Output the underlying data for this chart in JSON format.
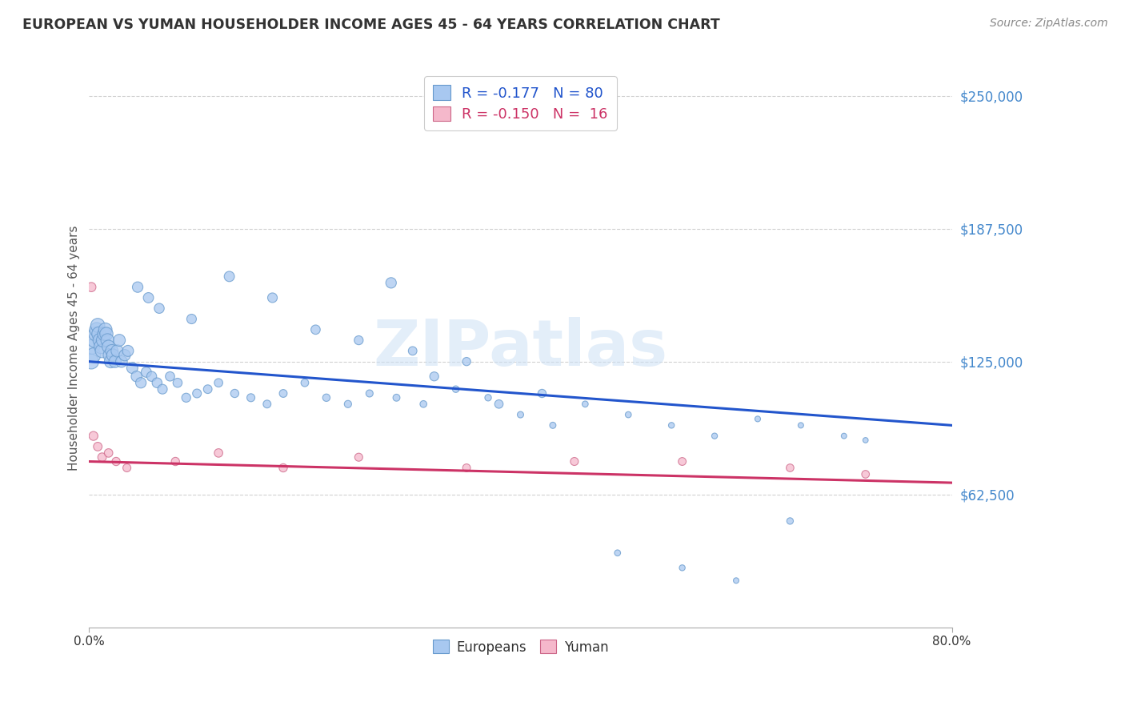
{
  "title": "EUROPEAN VS YUMAN HOUSEHOLDER INCOME AGES 45 - 64 YEARS CORRELATION CHART",
  "source": "Source: ZipAtlas.com",
  "ylabel": "Householder Income Ages 45 - 64 years",
  "xlim": [
    0,
    0.8
  ],
  "ylim": [
    0,
    262500
  ],
  "yticks": [
    62500,
    125000,
    187500,
    250000
  ],
  "ytick_labels": [
    "$62,500",
    "$125,000",
    "$187,500",
    "$250,000"
  ],
  "xtick_labels": [
    "0.0%",
    "80.0%"
  ],
  "background_color": "#ffffff",
  "grid_color": "#cccccc",
  "eu_color": "#a8c8f0",
  "eu_edge_color": "#6699cc",
  "yu_color": "#f5b8cb",
  "yu_edge_color": "#cc6688",
  "eu_line_color": "#2255cc",
  "yu_line_color": "#cc3366",
  "ytick_color": "#4488cc",
  "eu_legend_label": "R = -0.177   N = 80",
  "yu_legend_label": "R = -0.150   N =  16",
  "eu_line_x": [
    0,
    0.8
  ],
  "eu_line_y": [
    125000,
    95000
  ],
  "yu_line_x": [
    0,
    0.8
  ],
  "yu_line_y": [
    78000,
    68000
  ],
  "eu_x": [
    0.002,
    0.003,
    0.004,
    0.005,
    0.006,
    0.007,
    0.008,
    0.009,
    0.01,
    0.011,
    0.012,
    0.013,
    0.014,
    0.015,
    0.016,
    0.017,
    0.018,
    0.019,
    0.02,
    0.021,
    0.022,
    0.024,
    0.026,
    0.028,
    0.03,
    0.033,
    0.036,
    0.04,
    0.044,
    0.048,
    0.053,
    0.058,
    0.063,
    0.068,
    0.075,
    0.082,
    0.09,
    0.1,
    0.11,
    0.12,
    0.135,
    0.15,
    0.165,
    0.18,
    0.2,
    0.22,
    0.24,
    0.26,
    0.285,
    0.31,
    0.34,
    0.37,
    0.4,
    0.43,
    0.46,
    0.5,
    0.54,
    0.58,
    0.62,
    0.66,
    0.7,
    0.72,
    0.045,
    0.055,
    0.065,
    0.095,
    0.13,
    0.17,
    0.21,
    0.25,
    0.3,
    0.35,
    0.28,
    0.32,
    0.38,
    0.42,
    0.49,
    0.55,
    0.6,
    0.65
  ],
  "eu_y": [
    125000,
    132000,
    128000,
    135000,
    138000,
    140000,
    142000,
    138000,
    135000,
    132000,
    130000,
    135000,
    138000,
    140000,
    138000,
    135000,
    132000,
    128000,
    125000,
    130000,
    128000,
    125000,
    130000,
    135000,
    125000,
    128000,
    130000,
    122000,
    118000,
    115000,
    120000,
    118000,
    115000,
    112000,
    118000,
    115000,
    108000,
    110000,
    112000,
    115000,
    110000,
    108000,
    105000,
    110000,
    115000,
    108000,
    105000,
    110000,
    108000,
    105000,
    112000,
    108000,
    100000,
    95000,
    105000,
    100000,
    95000,
    90000,
    98000,
    95000,
    90000,
    88000,
    160000,
    155000,
    150000,
    145000,
    165000,
    155000,
    140000,
    135000,
    130000,
    125000,
    162000,
    118000,
    105000,
    110000,
    35000,
    28000,
    22000,
    50000
  ],
  "eu_sizes": [
    180,
    180,
    170,
    170,
    165,
    165,
    160,
    160,
    155,
    155,
    150,
    150,
    145,
    145,
    140,
    140,
    135,
    135,
    130,
    130,
    125,
    120,
    120,
    115,
    110,
    105,
    100,
    100,
    95,
    90,
    85,
    80,
    80,
    75,
    70,
    68,
    65,
    62,
    60,
    58,
    55,
    52,
    50,
    50,
    48,
    45,
    43,
    42,
    40,
    38,
    36,
    35,
    33,
    32,
    30,
    30,
    28,
    27,
    26,
    25,
    24,
    23,
    90,
    85,
    80,
    75,
    85,
    75,
    70,
    65,
    60,
    55,
    90,
    65,
    58,
    55,
    30,
    28,
    25,
    35
  ],
  "yu_x": [
    0.002,
    0.004,
    0.008,
    0.012,
    0.018,
    0.025,
    0.035,
    0.08,
    0.12,
    0.18,
    0.25,
    0.35,
    0.45,
    0.55,
    0.65,
    0.72
  ],
  "yu_y": [
    160000,
    90000,
    85000,
    80000,
    82000,
    78000,
    75000,
    78000,
    82000,
    75000,
    80000,
    75000,
    78000,
    78000,
    75000,
    72000
  ],
  "yu_sizes": [
    70,
    65,
    60,
    60,
    58,
    55,
    52,
    55,
    58,
    55,
    52,
    50,
    52,
    50,
    48,
    48
  ]
}
